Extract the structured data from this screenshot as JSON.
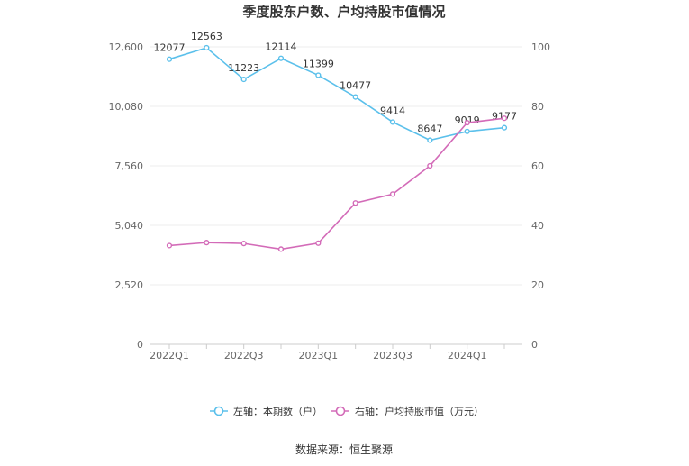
{
  "chart_data": {
    "type": "line",
    "title": "季度股东户数、户均持股市值情况",
    "source": "数据来源：恒生聚源",
    "x": [
      "2022Q1",
      "2022Q2",
      "2022Q3",
      "2022Q4",
      "2023Q1",
      "2023Q2",
      "2023Q3",
      "2023Q4",
      "2024Q1",
      "2024Q2"
    ],
    "x_tick_labels": [
      "2022Q1",
      "2022Q3",
      "2023Q1",
      "2023Q3",
      "2024Q1"
    ],
    "left_axis": {
      "ylim": [
        0,
        12600
      ],
      "ticks": [
        "0",
        "2,520",
        "5,040",
        "7,560",
        "10,080",
        "12,600"
      ]
    },
    "right_axis": {
      "ylim": [
        0,
        100
      ],
      "ticks": [
        "0",
        "20",
        "40",
        "60",
        "80",
        "100"
      ]
    },
    "series": [
      {
        "name": "左轴：本期数（户）",
        "axis": "left",
        "color": "#5bc0eb",
        "values": [
          12077,
          12563,
          11223,
          12114,
          11399,
          10477,
          9414,
          8647,
          9019,
          9177
        ],
        "labels": [
          "12077",
          "12563",
          "11223",
          "12114",
          "11399",
          "10477",
          "9414",
          "8647",
          "9019",
          "9177"
        ]
      },
      {
        "name": "右轴：户均持股市值（万元）",
        "axis": "right",
        "color": "#d36bb8",
        "values": [
          33.2,
          34.2,
          33.9,
          32.0,
          34.0,
          47.5,
          50.5,
          60.0,
          74.5,
          76.0
        ]
      }
    ],
    "legend_position": "bottom",
    "grid": true
  }
}
